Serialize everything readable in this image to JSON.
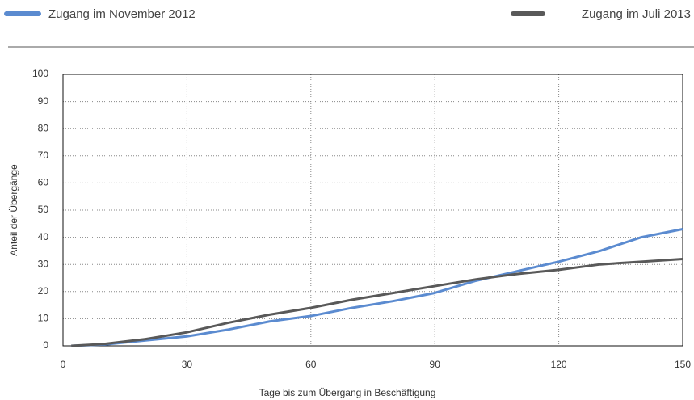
{
  "chart_data": {
    "type": "line",
    "xlabel": "Tage bis zum Übergang in Beschäftigung",
    "ylabel": "Anteil der Übergänge",
    "x": [
      2,
      10,
      20,
      30,
      40,
      50,
      60,
      70,
      80,
      90,
      100,
      110,
      120,
      130,
      140,
      150
    ],
    "series": [
      {
        "name": "Zugang im November 2012",
        "color": "#5b8bd0",
        "values": [
          0,
          0.5,
          2,
          3.5,
          6,
          9,
          11,
          14,
          16.5,
          19.5,
          24,
          27.5,
          31,
          35,
          40,
          43
        ]
      },
      {
        "name": "Zugang im Juli 2013",
        "color": "#595959",
        "values": [
          0,
          0.7,
          2.5,
          5,
          8.5,
          11.5,
          14,
          17,
          19.5,
          22,
          24.5,
          26.5,
          28,
          30,
          31,
          32
        ]
      }
    ],
    "xlim": [
      0,
      150
    ],
    "xticks": [
      0,
      30,
      60,
      90,
      120,
      150
    ],
    "ylim": [
      0,
      100
    ],
    "yticks": [
      0,
      10,
      20,
      30,
      40,
      50,
      60,
      70,
      80,
      90,
      100
    ],
    "grid": true
  }
}
